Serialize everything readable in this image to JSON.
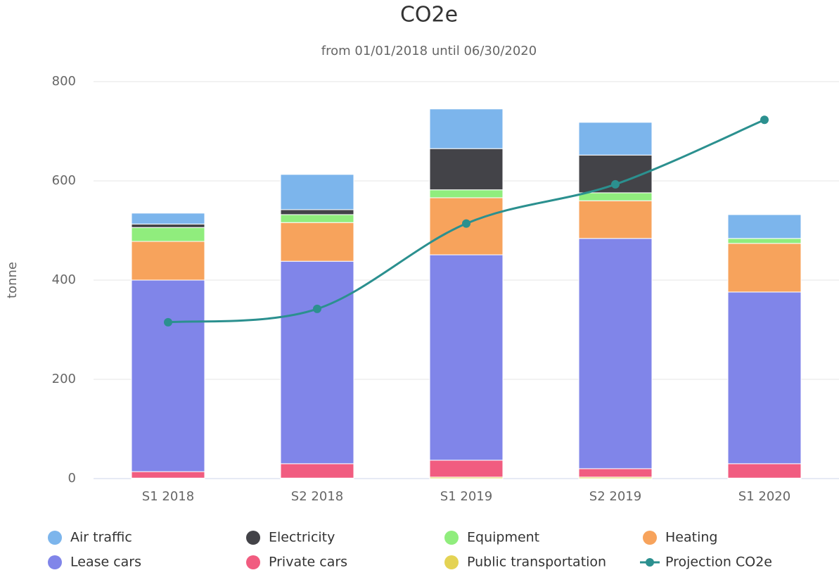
{
  "chart_data": {
    "type": "bar",
    "title": "CO2e",
    "subtitle": "from 01/01/2018 until 06/30/2020",
    "y_label": "tonne",
    "categories": [
      "S1 2018",
      "S2 2018",
      "S1 2019",
      "S2 2019",
      "S1 2020"
    ],
    "stacked": true,
    "series": [
      {
        "name": "Air traffic",
        "color": "#7cb5ec",
        "values": [
          22,
          71,
          80,
          66,
          48
        ]
      },
      {
        "name": "Electricity",
        "color": "#434348",
        "values": [
          7,
          10,
          83,
          76,
          0
        ]
      },
      {
        "name": "Equipment",
        "color": "#90ed7d",
        "values": [
          28,
          16,
          16,
          16,
          10
        ]
      },
      {
        "name": "Heating",
        "color": "#f7a35c",
        "values": [
          78,
          78,
          115,
          76,
          98
        ]
      },
      {
        "name": "Lease cars",
        "color": "#8085e9",
        "values": [
          386,
          408,
          414,
          464,
          346
        ]
      },
      {
        "name": "Private cars",
        "color": "#f15c80",
        "values": [
          13,
          29,
          34,
          17,
          29
        ]
      },
      {
        "name": "Public transportation",
        "color": "#e4d354",
        "values": [
          1,
          1,
          3,
          3,
          1
        ]
      },
      {
        "name": "Projection CO2e",
        "color": "#2b908f",
        "type": "line",
        "values": [
          315,
          342,
          514,
          593,
          723
        ]
      }
    ],
    "ylim": [
      0,
      800
    ],
    "yticks": [
      0,
      200,
      400,
      600,
      800
    ],
    "grid": true,
    "legend": "bottom"
  }
}
